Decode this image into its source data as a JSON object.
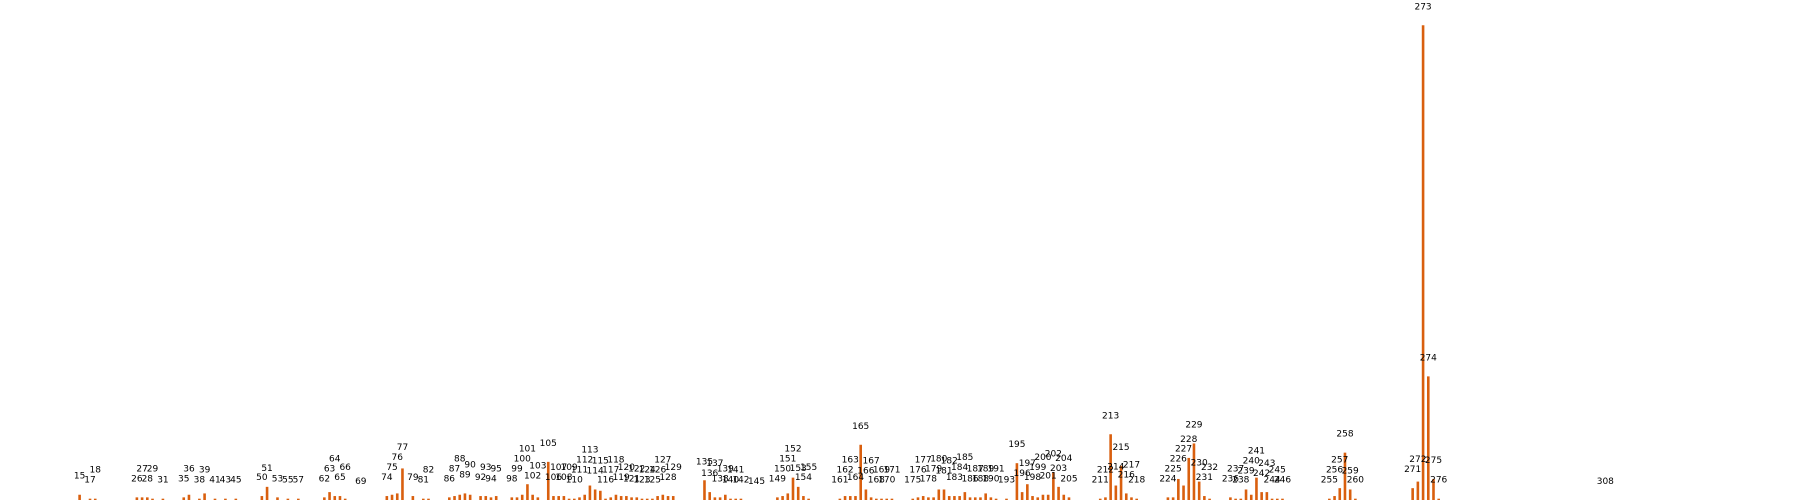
{
  "chart_data": {
    "type": "bar",
    "color": "#d95f0e",
    "peaks": [
      {
        "x": 15,
        "y": 4
      },
      {
        "x": 17,
        "y": 1
      },
      {
        "x": 18,
        "y": 1
      },
      {
        "x": 26,
        "y": 2
      },
      {
        "x": 27,
        "y": 2
      },
      {
        "x": 28,
        "y": 2
      },
      {
        "x": 29,
        "y": 1
      },
      {
        "x": 31,
        "y": 1
      },
      {
        "x": 35,
        "y": 2
      },
      {
        "x": 36,
        "y": 4
      },
      {
        "x": 38,
        "y": 1
      },
      {
        "x": 39,
        "y": 5
      },
      {
        "x": 41,
        "y": 1
      },
      {
        "x": 43,
        "y": 1
      },
      {
        "x": 45,
        "y": 1
      },
      {
        "x": 50,
        "y": 3
      },
      {
        "x": 51,
        "y": 10
      },
      {
        "x": 53,
        "y": 2
      },
      {
        "x": 55,
        "y": 1
      },
      {
        "x": 57,
        "y": 1
      },
      {
        "x": 62,
        "y": 2
      },
      {
        "x": 63,
        "y": 6
      },
      {
        "x": 64,
        "y": 3
      },
      {
        "x": 65,
        "y": 3
      },
      {
        "x": 66,
        "y": 1
      },
      {
        "x": 69,
        "y": 0
      },
      {
        "x": 74,
        "y": 3
      },
      {
        "x": 75,
        "y": 4
      },
      {
        "x": 76,
        "y": 5
      },
      {
        "x": 77,
        "y": 24
      },
      {
        "x": 79,
        "y": 3
      },
      {
        "x": 81,
        "y": 1
      },
      {
        "x": 82,
        "y": 1
      },
      {
        "x": 86,
        "y": 2
      },
      {
        "x": 87,
        "y": 3
      },
      {
        "x": 88,
        "y": 4
      },
      {
        "x": 89,
        "y": 5
      },
      {
        "x": 90,
        "y": 4
      },
      {
        "x": 92,
        "y": 3
      },
      {
        "x": 93,
        "y": 3
      },
      {
        "x": 94,
        "y": 2
      },
      {
        "x": 95,
        "y": 3
      },
      {
        "x": 98,
        "y": 2
      },
      {
        "x": 99,
        "y": 2
      },
      {
        "x": 100,
        "y": 4
      },
      {
        "x": 101,
        "y": 12
      },
      {
        "x": 102,
        "y": 4
      },
      {
        "x": 103,
        "y": 2
      },
      {
        "x": 105,
        "y": 29
      },
      {
        "x": 106,
        "y": 3
      },
      {
        "x": 107,
        "y": 3
      },
      {
        "x": 108,
        "y": 3
      },
      {
        "x": 109,
        "y": 1
      },
      {
        "x": 110,
        "y": 1
      },
      {
        "x": 111,
        "y": 2
      },
      {
        "x": 112,
        "y": 4
      },
      {
        "x": 113,
        "y": 11
      },
      {
        "x": 114,
        "y": 8
      },
      {
        "x": 115,
        "y": 7
      },
      {
        "x": 116,
        "y": 1
      },
      {
        "x": 117,
        "y": 2
      },
      {
        "x": 118,
        "y": 4
      },
      {
        "x": 119,
        "y": 3
      },
      {
        "x": 120,
        "y": 3
      },
      {
        "x": 121,
        "y": 2
      },
      {
        "x": 122,
        "y": 2
      },
      {
        "x": 123,
        "y": 1
      },
      {
        "x": 124,
        "y": 1
      },
      {
        "x": 125,
        "y": 1
      },
      {
        "x": 126,
        "y": 3
      },
      {
        "x": 127,
        "y": 4
      },
      {
        "x": 128,
        "y": 3
      },
      {
        "x": 129,
        "y": 3
      },
      {
        "x": 135,
        "y": 15
      },
      {
        "x": 136,
        "y": 6
      },
      {
        "x": 137,
        "y": 2
      },
      {
        "x": 138,
        "y": 2
      },
      {
        "x": 139,
        "y": 4
      },
      {
        "x": 140,
        "y": 1
      },
      {
        "x": 141,
        "y": 1
      },
      {
        "x": 142,
        "y": 1
      },
      {
        "x": 145,
        "y": 0
      },
      {
        "x": 149,
        "y": 2
      },
      {
        "x": 150,
        "y": 3
      },
      {
        "x": 151,
        "y": 5
      },
      {
        "x": 152,
        "y": 17
      },
      {
        "x": 153,
        "y": 10
      },
      {
        "x": 154,
        "y": 3
      },
      {
        "x": 155,
        "y": 1
      },
      {
        "x": 161,
        "y": 1
      },
      {
        "x": 162,
        "y": 3
      },
      {
        "x": 163,
        "y": 3
      },
      {
        "x": 164,
        "y": 3
      },
      {
        "x": 165,
        "y": 42
      },
      {
        "x": 166,
        "y": 8
      },
      {
        "x": 167,
        "y": 2
      },
      {
        "x": 168,
        "y": 1
      },
      {
        "x": 169,
        "y": 1
      },
      {
        "x": 170,
        "y": 1
      },
      {
        "x": 171,
        "y": 1
      },
      {
        "x": 175,
        "y": 1
      },
      {
        "x": 176,
        "y": 2
      },
      {
        "x": 177,
        "y": 3
      },
      {
        "x": 178,
        "y": 2
      },
      {
        "x": 179,
        "y": 2
      },
      {
        "x": 180,
        "y": 8
      },
      {
        "x": 181,
        "y": 8
      },
      {
        "x": 182,
        "y": 3
      },
      {
        "x": 183,
        "y": 3
      },
      {
        "x": 184,
        "y": 3
      },
      {
        "x": 185,
        "y": 6
      },
      {
        "x": 186,
        "y": 2
      },
      {
        "x": 187,
        "y": 2
      },
      {
        "x": 188,
        "y": 2
      },
      {
        "x": 189,
        "y": 5
      },
      {
        "x": 190,
        "y": 2
      },
      {
        "x": 191,
        "y": 1
      },
      {
        "x": 193,
        "y": 1
      },
      {
        "x": 195,
        "y": 28
      },
      {
        "x": 196,
        "y": 6
      },
      {
        "x": 197,
        "y": 12
      },
      {
        "x": 198,
        "y": 3
      },
      {
        "x": 199,
        "y": 2
      },
      {
        "x": 200,
        "y": 4
      },
      {
        "x": 201,
        "y": 4
      },
      {
        "x": 202,
        "y": 21
      },
      {
        "x": 203,
        "y": 10
      },
      {
        "x": 204,
        "y": 4
      },
      {
        "x": 205,
        "y": 2
      },
      {
        "x": 211,
        "y": 1
      },
      {
        "x": 212,
        "y": 2
      },
      {
        "x": 213,
        "y": 50
      },
      {
        "x": 214,
        "y": 11
      },
      {
        "x": 215,
        "y": 26
      },
      {
        "x": 216,
        "y": 5
      },
      {
        "x": 217,
        "y": 2
      },
      {
        "x": 218,
        "y": 1
      },
      {
        "x": 224,
        "y": 2
      },
      {
        "x": 225,
        "y": 2
      },
      {
        "x": 226,
        "y": 16
      },
      {
        "x": 227,
        "y": 11
      },
      {
        "x": 228,
        "y": 32
      },
      {
        "x": 229,
        "y": 43
      },
      {
        "x": 230,
        "y": 14
      },
      {
        "x": 231,
        "y": 3
      },
      {
        "x": 232,
        "y": 1
      },
      {
        "x": 236,
        "y": 2
      },
      {
        "x": 237,
        "y": 1
      },
      {
        "x": 238,
        "y": 1
      },
      {
        "x": 239,
        "y": 8
      },
      {
        "x": 240,
        "y": 4
      },
      {
        "x": 241,
        "y": 17
      },
      {
        "x": 242,
        "y": 6
      },
      {
        "x": 243,
        "y": 6
      },
      {
        "x": 244,
        "y": 1
      },
      {
        "x": 245,
        "y": 1
      },
      {
        "x": 246,
        "y": 1
      },
      {
        "x": 255,
        "y": 1
      },
      {
        "x": 256,
        "y": 3
      },
      {
        "x": 257,
        "y": 9
      },
      {
        "x": 258,
        "y": 36
      },
      {
        "x": 259,
        "y": 8
      },
      {
        "x": 260,
        "y": 1
      },
      {
        "x": 271,
        "y": 9
      },
      {
        "x": 272,
        "y": 14
      },
      {
        "x": 273,
        "y": 361
      },
      {
        "x": 274,
        "y": 94
      },
      {
        "x": 275,
        "y": 16
      },
      {
        "x": 276,
        "y": 1
      },
      {
        "x": 308,
        "y": 0
      }
    ],
    "labels": [
      "15",
      "17",
      "18",
      "26",
      "27",
      "28",
      "29",
      "31",
      "35",
      "36",
      "38",
      "39",
      "41",
      "43",
      "45",
      "50",
      "51",
      "53",
      "55",
      "57",
      "62",
      "63",
      "64",
      "65",
      "66",
      "69",
      "74",
      "75",
      "76",
      "77",
      "79",
      "81",
      "82",
      "86",
      "87",
      "88",
      "89",
      "90",
      "92",
      "93",
      "94",
      "95",
      "98",
      "99",
      "100",
      "101",
      "102",
      "103",
      "105",
      "106",
      "107",
      "108",
      "109",
      "110",
      "111",
      "112",
      "113",
      "114",
      "115",
      "116",
      "117",
      "118",
      "119",
      "120",
      "121",
      "122",
      "123",
      "124",
      "125",
      "126",
      "127",
      "128",
      "129",
      "135",
      "136",
      "137",
      "138",
      "139",
      "140",
      "141",
      "142",
      "145",
      "149",
      "150",
      "151",
      "152",
      "153",
      "154",
      "155",
      "161",
      "162",
      "163",
      "164",
      "165",
      "166",
      "167",
      "168",
      "169",
      "170",
      "171",
      "175",
      "176",
      "177",
      "178",
      "179",
      "180",
      "181",
      "182",
      "183",
      "184",
      "185",
      "186",
      "187",
      "188",
      "189",
      "190",
      "191",
      "193",
      "195",
      "196",
      "197",
      "198",
      "199",
      "200",
      "201",
      "202",
      "203",
      "204",
      "205",
      "211",
      "212",
      "213",
      "214",
      "215",
      "216",
      "217",
      "218",
      "224",
      "225",
      "226",
      "227",
      "228",
      "229",
      "230",
      "231",
      "232",
      "236",
      "237",
      "238",
      "239",
      "240",
      "241",
      "242",
      "243",
      "244",
      "245",
      "246",
      "255",
      "256",
      "257",
      "258",
      "259",
      "260",
      "271",
      "272",
      "273",
      "274",
      "275",
      "276",
      "308"
    ],
    "xlim": [
      0,
      345
    ],
    "ylim": [
      0,
      365
    ],
    "grid": false,
    "axes_visible": false
  }
}
